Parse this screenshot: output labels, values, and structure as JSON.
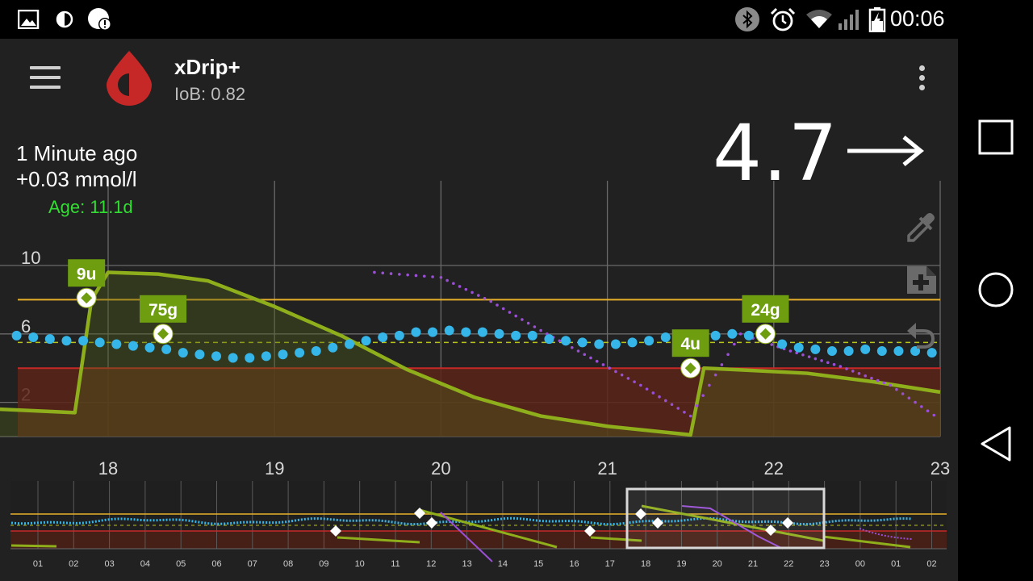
{
  "status_bar": {
    "time": "00:06",
    "left_icons": [
      "image-icon",
      "data-saver-icon",
      "alert-icon"
    ],
    "right_icons": [
      "bluetooth-icon",
      "alarm-icon",
      "wifi-icon",
      "signal-icon",
      "battery-charging-icon"
    ]
  },
  "app_bar": {
    "title": "xDrip+",
    "subtitle": "IoB: 0.82",
    "menu_icon": "hamburger-menu-icon",
    "logo_icon": "blood-drop-icon",
    "overflow_icon": "more-vert-icon"
  },
  "reading": {
    "minutes_ago": "1 Minute ago",
    "delta": "+0.03 mmol/l",
    "sensor_age": "Age: 11.1d",
    "value": "4.7",
    "trend_arrow": "→"
  },
  "side_actions": [
    "eyedropper-icon",
    "note-add-icon",
    "undo-icon"
  ],
  "colors": {
    "bg": "#212121",
    "bg_line": "#35b5e8",
    "iob_curve": "#8fae1b",
    "prediction": "#9b4fd6",
    "high_line": "#e8b02a",
    "low_line": "#c62828",
    "treatment_label": "#6e9e10"
  },
  "chart_data": {
    "type": "line",
    "main_chart": {
      "x_ticks": [
        "18",
        "19",
        "20",
        "21",
        "22",
        "23"
      ],
      "y_ticks": [
        "10",
        "6",
        "2"
      ],
      "y_unit": "mmol/l",
      "ylim": [
        0,
        11
      ],
      "xlim": [
        17.35,
        23.0
      ],
      "high_threshold": 8.0,
      "low_threshold": 4.0,
      "target_dashed": 5.5,
      "series": [
        {
          "name": "bg",
          "x": [
            17.45,
            17.55,
            17.65,
            17.75,
            17.85,
            17.95,
            18.05,
            18.15,
            18.25,
            18.35,
            18.45,
            18.55,
            18.65,
            18.75,
            18.85,
            18.95,
            19.05,
            19.15,
            19.25,
            19.35,
            19.45,
            19.55,
            19.65,
            19.75,
            19.85,
            19.95,
            20.05,
            20.15,
            20.25,
            20.35,
            20.45,
            20.55,
            20.65,
            20.75,
            20.85,
            20.95,
            21.05,
            21.15,
            21.25,
            21.35,
            21.45,
            21.55,
            21.65,
            21.75,
            21.85,
            21.95,
            22.05,
            22.15,
            22.25,
            22.35,
            22.45,
            22.55,
            22.65,
            22.75,
            22.85,
            22.95
          ],
          "values": [
            5.9,
            5.8,
            5.7,
            5.6,
            5.6,
            5.5,
            5.4,
            5.3,
            5.2,
            5.1,
            4.9,
            4.8,
            4.7,
            4.6,
            4.6,
            4.7,
            4.8,
            4.9,
            5.0,
            5.2,
            5.4,
            5.6,
            5.8,
            5.9,
            6.1,
            6.1,
            6.2,
            6.1,
            6.1,
            6.0,
            5.9,
            5.9,
            5.7,
            5.6,
            5.5,
            5.4,
            5.4,
            5.5,
            5.6,
            5.8,
            5.9,
            5.9,
            5.9,
            6.0,
            5.9,
            5.7,
            5.4,
            5.2,
            5.1,
            5.0,
            5.0,
            5.1,
            5.0,
            5.0,
            5.0,
            4.9
          ]
        },
        {
          "name": "iob",
          "x": [
            17.35,
            17.8,
            17.9,
            18.0,
            18.3,
            18.6,
            19.0,
            19.4,
            19.8,
            20.2,
            20.6,
            21.0,
            21.5,
            21.58,
            21.8,
            22.2,
            22.6,
            23.0
          ],
          "values": [
            1.6,
            1.4,
            8.0,
            9.6,
            9.5,
            9.1,
            7.6,
            5.9,
            3.9,
            2.3,
            1.2,
            0.6,
            0.1,
            4.0,
            3.9,
            3.7,
            3.2,
            2.6
          ]
        },
        {
          "name": "prediction",
          "x": [
            19.6,
            20.0,
            20.3,
            20.6,
            20.9,
            21.2,
            21.5,
            21.8,
            22.1,
            22.4,
            22.7,
            23.0
          ],
          "values": [
            9.6,
            9.3,
            7.9,
            6.2,
            4.6,
            3.0,
            1.2,
            6.0,
            5.0,
            4.1,
            3.0,
            1.0
          ]
        }
      ],
      "treatments": [
        {
          "label": "9u",
          "x": 17.87,
          "y": 8.1
        },
        {
          "label": "75g",
          "x": 18.33,
          "y": 6.0
        },
        {
          "label": "4u",
          "x": 21.5,
          "y": 4.0
        },
        {
          "label": "24g",
          "x": 21.95,
          "y": 6.0
        }
      ]
    },
    "preview_chart": {
      "x_ticks": [
        "01",
        "02",
        "03",
        "04",
        "05",
        "06",
        "07",
        "08",
        "09",
        "10",
        "11",
        "12",
        "13",
        "14",
        "15",
        "16",
        "17",
        "18",
        "19",
        "20",
        "21",
        "22",
        "23",
        "00",
        "01",
        "02"
      ]
    }
  }
}
